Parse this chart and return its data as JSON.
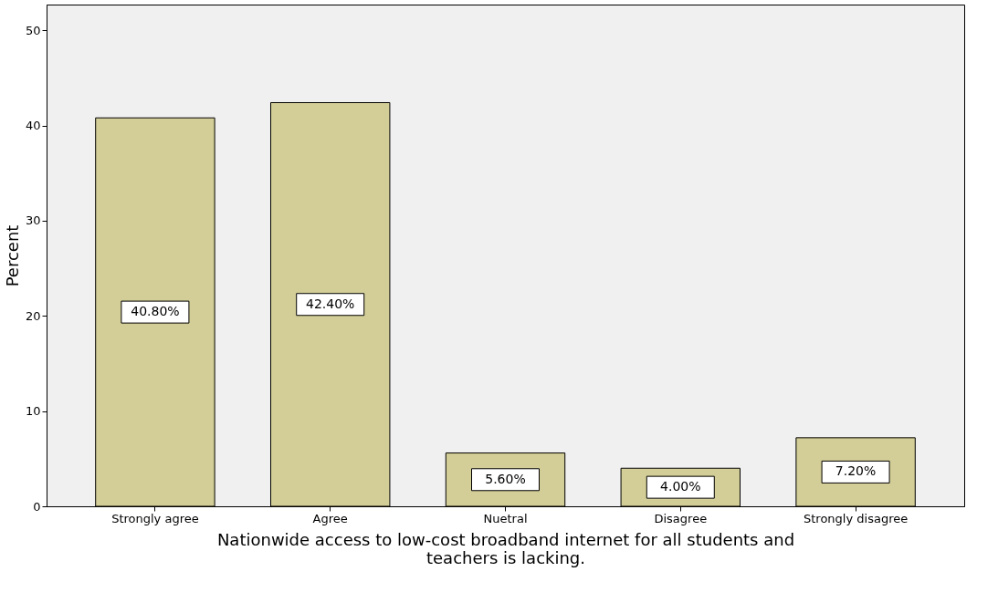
{
  "chart_data": {
    "type": "bar",
    "xlabel": "Nationwide access to low-cost broadband internet for all students and teachers is lacking.",
    "ylabel": "Percent",
    "categories": [
      "Strongly agree",
      "Agree",
      "Nuetral",
      "Disagree",
      "Strongly disagree"
    ],
    "values": [
      40.8,
      42.4,
      5.6,
      4.0,
      7.2
    ],
    "value_labels": [
      "40.80%",
      "42.40%",
      "5.60%",
      "4.00%",
      "7.20%"
    ],
    "color": "#d3ce97",
    "ylim": [
      0,
      52.7
    ],
    "yticks": [
      0,
      10,
      20,
      30,
      40,
      50
    ],
    "grid": false
  }
}
